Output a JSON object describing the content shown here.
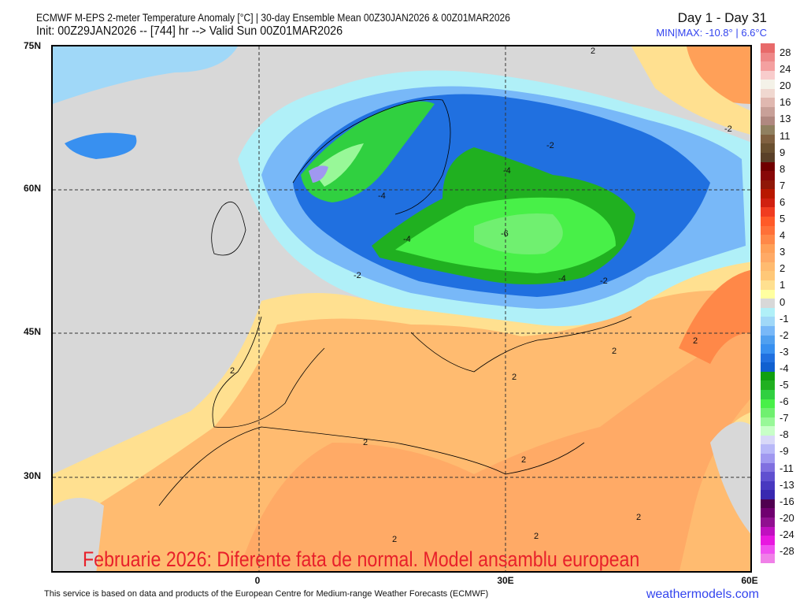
{
  "header": {
    "title": "ECMWF M-EPS 2-meter Temperature Anomaly [°C] | 30-day Ensemble Mean 00Z30JAN2026 & 00Z01MAR2026",
    "subtitle": "Init: 00Z29JAN2026 -- [744] hr --> Valid Sun 00Z01MAR2026",
    "period": "Day 1 - Day 31",
    "minmax": "MIN|MAX: -10.8° | 6.6°C"
  },
  "axes": {
    "lat_labels": [
      "75N",
      "60N",
      "45N",
      "30N"
    ],
    "lon_labels": [
      "0",
      "30E",
      "60E"
    ]
  },
  "contour_labels": [
    "2",
    "-2",
    "-4",
    "-4",
    "-4",
    "-4",
    "-6",
    "-2",
    "-2",
    "-2",
    "2",
    "2",
    "2",
    "2",
    "2",
    "2",
    "2",
    "2",
    "2"
  ],
  "overlay_text": "Februarie 2026: Diferente fata de normal. Model ansamblu european",
  "footer": {
    "credit": "This service is based on data and products of the European Centre for Medium-range Weather Forecasts (ECMWF)",
    "brand": "weathermodels.com"
  },
  "legend": {
    "labels": [
      "28",
      "24",
      "20",
      "16",
      "13",
      "11",
      "9",
      "8",
      "7",
      "6",
      "5",
      "4",
      "3",
      "2",
      "1",
      "0",
      "-1",
      "-2",
      "-3",
      "-4",
      "-5",
      "-6",
      "-7",
      "-8",
      "-9",
      "-11",
      "-13",
      "-16",
      "-20",
      "-24",
      "-28"
    ],
    "colors": [
      "#e86a6a",
      "#ee8888",
      "#f4a0a0",
      "#f8cccc",
      "#f4f2e8",
      "#f0d8d0",
      "#e0b8b0",
      "#c8a098",
      "#b08880",
      "#908060",
      "#806040",
      "#6a5030",
      "#5a4028",
      "#700000",
      "#880808",
      "#901808",
      "#b81800",
      "#d02010",
      "#f03c20",
      "#ff5a28",
      "#ff7038",
      "#ff8848",
      "#ffa058",
      "#ffaa66",
      "#ffbb70",
      "#ffc878",
      "#ffe090",
      "#ffffa0",
      "#d8d8d8",
      "#b0f0f8",
      "#a0d8f8",
      "#78b8f8",
      "#50a0f0",
      "#3890f0",
      "#2070e0",
      "#1060d0",
      "#10a010",
      "#20b020",
      "#30d040",
      "#48f048",
      "#70f070",
      "#98f898",
      "#c8ffc8",
      "#d8d8f8",
      "#b8b8f8",
      "#a098f0",
      "#8070e0",
      "#6050d0",
      "#4838c0",
      "#3828b0",
      "#500050",
      "#700070",
      "#901090",
      "#c010c0",
      "#e818e0",
      "#f050f0",
      "#f080e8"
    ]
  }
}
